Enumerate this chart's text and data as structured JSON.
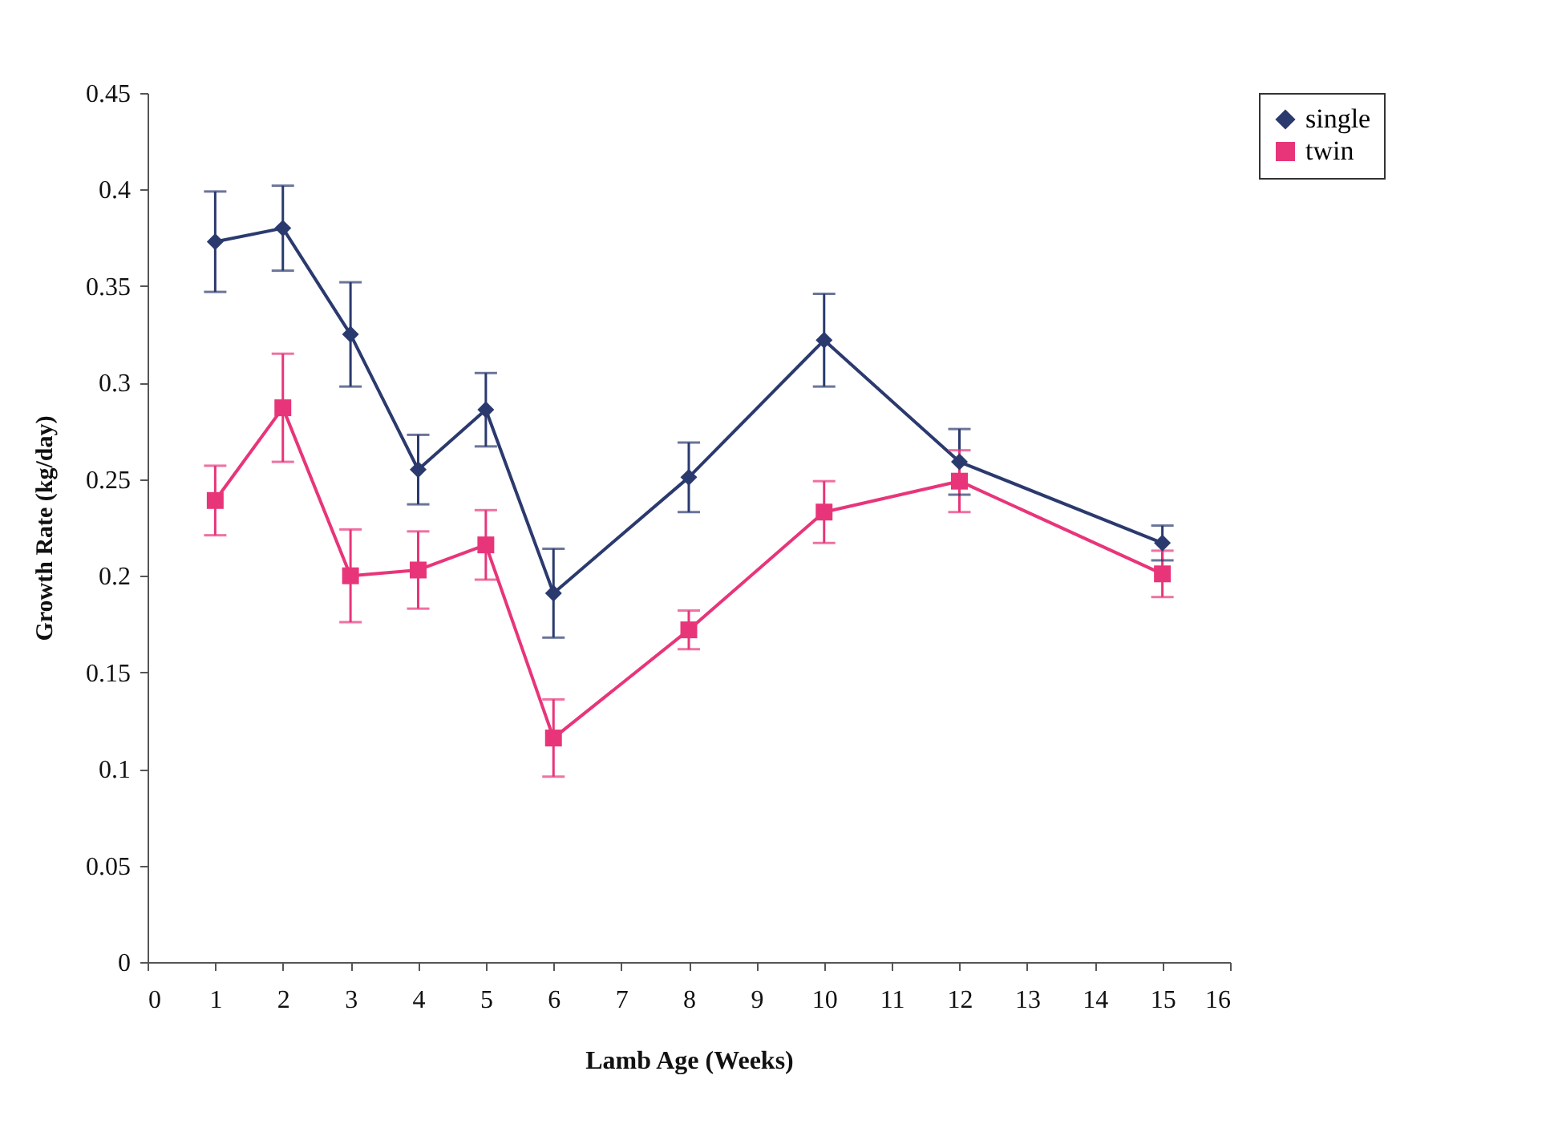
{
  "chart_data": {
    "type": "line",
    "xlabel": "Lamb Age (Weeks)",
    "ylabel": "Growth Rate (kg/day)",
    "x": [
      1,
      2,
      3,
      4,
      5,
      6,
      8,
      10,
      12,
      15
    ],
    "series": [
      {
        "name": "single",
        "color": "#2b3a6e",
        "marker": "diamond",
        "values": [
          0.373,
          0.38,
          0.325,
          0.255,
          0.286,
          0.191,
          0.251,
          0.322,
          0.259,
          0.217
        ],
        "errors": [
          0.026,
          0.022,
          0.027,
          0.018,
          0.019,
          0.023,
          0.018,
          0.024,
          0.017,
          0.009
        ]
      },
      {
        "name": "twin",
        "color": "#e8357a",
        "marker": "square",
        "values": [
          0.239,
          0.287,
          0.2,
          0.203,
          0.216,
          0.116,
          0.172,
          0.233,
          0.249,
          0.201
        ],
        "errors": [
          0.018,
          0.028,
          0.024,
          0.02,
          0.018,
          0.02,
          0.01,
          0.016,
          0.016,
          0.012
        ]
      }
    ],
    "xlim": [
      0,
      16
    ],
    "xticks": [
      0,
      1,
      2,
      3,
      4,
      5,
      6,
      7,
      8,
      9,
      10,
      11,
      12,
      13,
      14,
      15,
      16
    ],
    "ylim": [
      0,
      0.45
    ],
    "yticks": [
      0,
      0.05,
      0.1,
      0.15,
      0.2,
      0.25,
      0.3,
      0.35,
      0.4,
      0.45
    ],
    "legend": "right",
    "grid": false
  }
}
